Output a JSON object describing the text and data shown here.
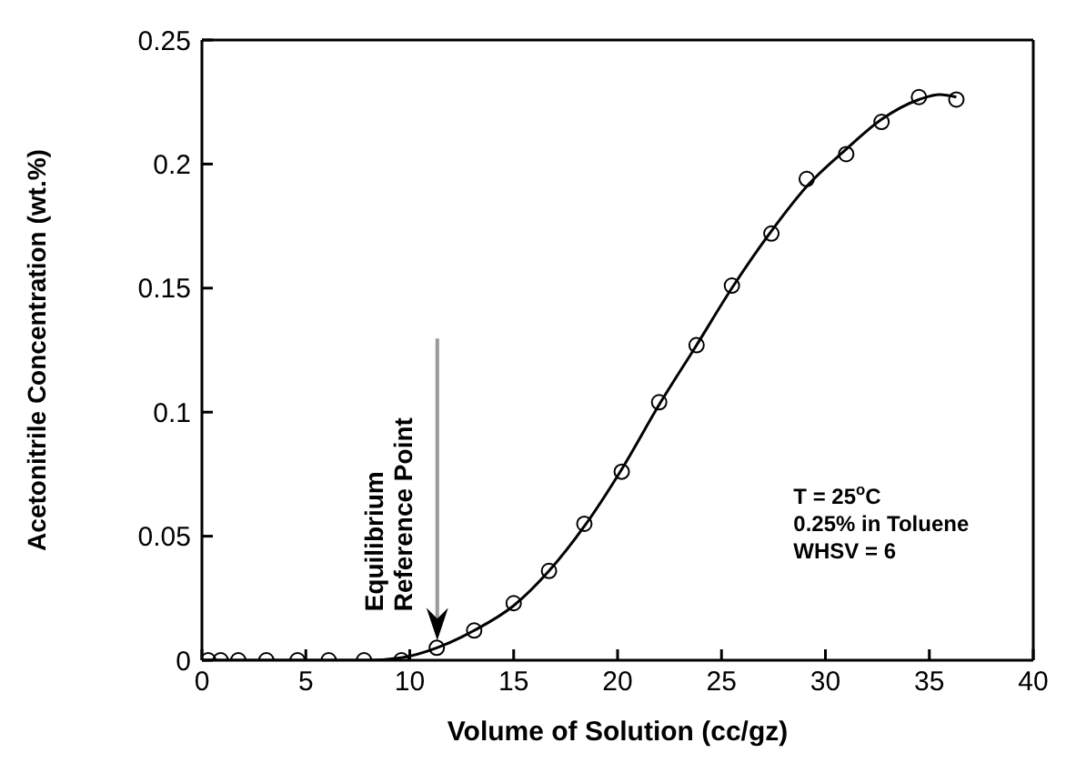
{
  "chart_data": {
    "type": "scatter",
    "xlabel": "Volume of Solution (cc/gz)",
    "ylabel": "Acetonitrile Concentration (wt.%)",
    "x": [
      0.3,
      0.9,
      1.75,
      3.1,
      4.6,
      6.1,
      7.8,
      9.6,
      11.3,
      13.1,
      15.0,
      16.7,
      18.4,
      20.2,
      22.0,
      23.8,
      25.5,
      27.4,
      29.1,
      31.0,
      32.7,
      34.5,
      36.3
    ],
    "series": [
      {
        "color": "#000000",
        "marker": "circle",
        "values": [
          0,
          0,
          0,
          0,
          0,
          0,
          0,
          0,
          0.005,
          0.012,
          0.023,
          0.036,
          0.055,
          0.076,
          0.104,
          0.127,
          0.151,
          0.172,
          0.194,
          0.204,
          0.217,
          0.227,
          0.226
        ]
      },
      {
        "type": "line",
        "color": "#000000",
        "marker": "none",
        "line_style": "solid",
        "x": [
          0,
          8,
          9.6,
          11.3,
          13.1,
          15,
          16.7,
          18.4,
          20.2,
          22,
          23.8,
          25.5,
          27.4,
          29.1,
          31,
          32.7,
          34.5,
          35.5,
          36.3
        ],
        "values": [
          0,
          0,
          0.001,
          0.005,
          0.012,
          0.022,
          0.036,
          0.054,
          0.077,
          0.103,
          0.127,
          0.15,
          0.173,
          0.191,
          0.206,
          0.218,
          0.226,
          0.228,
          0.227
        ]
      }
    ],
    "xlim": [
      0,
      40
    ],
    "xticks": [
      0,
      5,
      10,
      15,
      20,
      25,
      30,
      35,
      40
    ],
    "ylim": [
      0,
      0.25
    ],
    "yticks": [
      0,
      0.05,
      0.1,
      0.15,
      0.2,
      0.25
    ],
    "grid": false,
    "legend": false,
    "annotations": [
      {
        "text": "Equilibrium Reference Point",
        "x": 11.3,
        "y": 0.005
      },
      "T = 25$^{o}$C",
      "0.25% in Toluene",
      "WHSV = 6"
    ]
  }
}
